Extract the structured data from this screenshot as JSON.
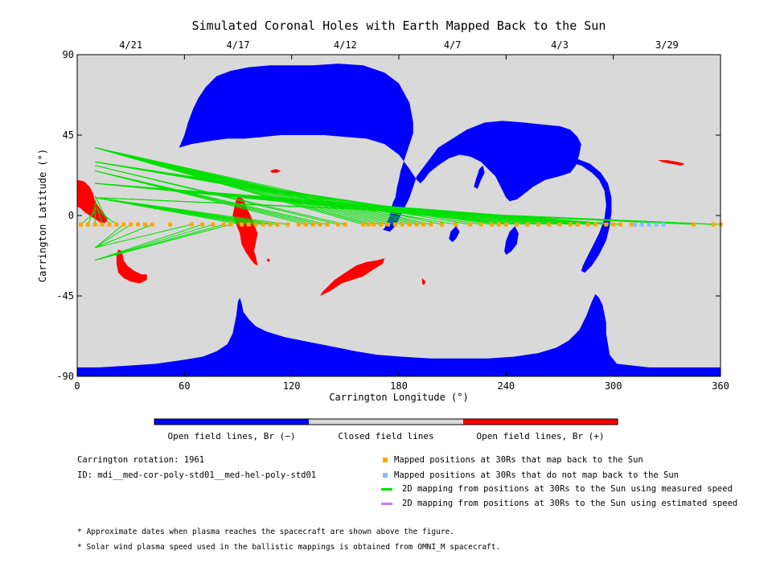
{
  "chart_data": {
    "type": "map",
    "title": "Simulated Coronal Holes with Earth Mapped Back to the Sun",
    "xlabel": "Carrington Longitude (°)",
    "ylabel": "Carrington Latitude (°)",
    "xlim": [
      0,
      360
    ],
    "ylim": [
      -90,
      90
    ],
    "x_ticks": [
      "0",
      "60",
      "120",
      "180",
      "240",
      "300",
      "360"
    ],
    "y_ticks": [
      "90",
      "45",
      "0",
      "-45",
      "-90"
    ],
    "top_dates": [
      {
        "label": "4/21",
        "lon": 30
      },
      {
        "label": "4/17",
        "lon": 90
      },
      {
        "label": "4/12",
        "lon": 150
      },
      {
        "label": "4/7",
        "lon": 210
      },
      {
        "label": "4/3",
        "lon": 270
      },
      {
        "label": "3/29",
        "lon": 330
      }
    ],
    "colorbar": [
      {
        "label": "Open field lines, Br (−)",
        "color": "#0000ff"
      },
      {
        "label": "Closed field lines",
        "color": "#d9d9d9"
      },
      {
        "label": "Open field lines, Br (+)",
        "color": "#ff0000"
      }
    ],
    "footpoint_latitude": -5,
    "mapped_positions_lon": [
      2,
      6,
      10,
      14,
      18,
      22,
      26,
      30,
      34,
      38,
      42,
      52,
      64,
      70,
      76,
      82,
      86,
      92,
      96,
      100,
      104,
      108,
      112,
      118,
      124,
      128,
      132,
      136,
      140,
      146,
      150,
      160,
      163,
      166,
      170,
      174,
      178,
      182,
      186,
      190,
      194,
      198,
      204,
      212,
      220,
      226,
      232,
      236,
      240,
      246,
      252,
      258,
      264,
      270,
      276,
      280,
      286,
      290,
      296,
      300,
      304,
      310,
      345,
      356,
      360
    ],
    "unmapped_positions_lon": [
      312,
      316,
      320,
      324,
      328
    ],
    "measured_mappings": [
      [
        2,
        10,
        2
      ],
      [
        6,
        10,
        5
      ],
      [
        10,
        10,
        7
      ],
      [
        14,
        10,
        9
      ],
      [
        18,
        10,
        11
      ],
      [
        22,
        10,
        4
      ],
      [
        26,
        10,
        -18
      ],
      [
        30,
        10,
        -18
      ],
      [
        42,
        10,
        -18
      ],
      [
        64,
        10,
        -18
      ],
      [
        70,
        10,
        -25
      ],
      [
        76,
        10,
        -25
      ],
      [
        82,
        10,
        -25
      ],
      [
        86,
        10,
        -25
      ],
      [
        92,
        10,
        10
      ],
      [
        96,
        10,
        10
      ],
      [
        100,
        10,
        10
      ],
      [
        104,
        10,
        10
      ],
      [
        108,
        10,
        10
      ],
      [
        112,
        10,
        10
      ],
      [
        118,
        10,
        10
      ],
      [
        128,
        10,
        25
      ],
      [
        132,
        10,
        25
      ],
      [
        136,
        10,
        25
      ],
      [
        140,
        10,
        25
      ],
      [
        146,
        10,
        28
      ],
      [
        150,
        10,
        28
      ],
      [
        160,
        10,
        38
      ],
      [
        163,
        10,
        38
      ],
      [
        166,
        10,
        38
      ],
      [
        170,
        10,
        38
      ],
      [
        174,
        10,
        38
      ],
      [
        178,
        10,
        38
      ],
      [
        182,
        10,
        38
      ],
      [
        186,
        10,
        38
      ],
      [
        190,
        10,
        38
      ],
      [
        194,
        10,
        38
      ],
      [
        198,
        10,
        38
      ],
      [
        204,
        10,
        38
      ],
      [
        212,
        10,
        30
      ],
      [
        220,
        10,
        30
      ],
      [
        226,
        10,
        30
      ],
      [
        232,
        10,
        30
      ],
      [
        236,
        10,
        30
      ],
      [
        240,
        10,
        30
      ],
      [
        246,
        10,
        18
      ],
      [
        252,
        10,
        18
      ],
      [
        258,
        10,
        18
      ],
      [
        264,
        10,
        18
      ],
      [
        270,
        10,
        18
      ],
      [
        276,
        10,
        18
      ],
      [
        280,
        10,
        18
      ],
      [
        286,
        10,
        18
      ],
      [
        290,
        10,
        18
      ],
      [
        296,
        10,
        18
      ],
      [
        300,
        10,
        18
      ],
      [
        304,
        10,
        18
      ],
      [
        345,
        10,
        10
      ],
      [
        356,
        10,
        10
      ],
      [
        360,
        10,
        10
      ]
    ],
    "holes_negative": [
      [
        [
          57,
          38
        ],
        [
          60,
          45
        ],
        [
          62,
          52
        ],
        [
          65,
          60
        ],
        [
          68,
          66
        ],
        [
          72,
          72
        ],
        [
          78,
          78
        ],
        [
          86,
          81
        ],
        [
          96,
          83
        ],
        [
          108,
          84
        ],
        [
          120,
          84
        ],
        [
          132,
          84
        ],
        [
          146,
          85
        ],
        [
          160,
          84
        ],
        [
          172,
          80
        ],
        [
          180,
          74
        ],
        [
          186,
          63
        ],
        [
          188,
          52
        ],
        [
          188,
          46
        ],
        [
          186,
          40
        ],
        [
          184,
          34
        ],
        [
          182,
          28
        ],
        [
          181,
          25
        ],
        [
          180,
          20
        ],
        [
          179,
          16
        ],
        [
          178,
          10
        ],
        [
          177,
          8
        ],
        [
          176,
          5
        ],
        [
          175,
          0
        ],
        [
          172,
          -7
        ],
        [
          171,
          -8
        ],
        [
          175,
          -9
        ],
        [
          178,
          -6
        ],
        [
          182,
          2
        ],
        [
          186,
          10
        ],
        [
          190,
          22
        ],
        [
          196,
          30
        ],
        [
          202,
          38
        ],
        [
          210,
          43
        ],
        [
          218,
          48
        ],
        [
          228,
          52
        ],
        [
          238,
          53
        ],
        [
          250,
          52
        ],
        [
          260,
          51
        ],
        [
          270,
          50
        ],
        [
          276,
          48
        ],
        [
          280,
          44
        ],
        [
          282,
          40
        ],
        [
          281,
          34
        ],
        [
          279,
          28
        ],
        [
          276,
          24
        ],
        [
          270,
          22
        ],
        [
          262,
          20
        ],
        [
          255,
          16
        ],
        [
          250,
          12
        ],
        [
          246,
          9
        ],
        [
          242,
          8
        ],
        [
          240,
          10
        ],
        [
          238,
          14
        ],
        [
          236,
          18
        ],
        [
          234,
          22
        ],
        [
          230,
          26
        ],
        [
          226,
          30
        ],
        [
          220,
          33
        ],
        [
          214,
          34
        ],
        [
          208,
          32
        ],
        [
          202,
          28
        ],
        [
          197,
          24
        ],
        [
          194,
          20
        ],
        [
          192,
          18
        ],
        [
          190,
          20
        ],
        [
          186,
          26
        ],
        [
          180,
          34
        ],
        [
          172,
          40
        ],
        [
          162,
          43
        ],
        [
          150,
          44
        ],
        [
          138,
          45
        ],
        [
          126,
          45
        ],
        [
          114,
          45
        ],
        [
          104,
          44
        ],
        [
          94,
          43
        ],
        [
          84,
          43
        ],
        [
          76,
          42
        ],
        [
          70,
          41
        ],
        [
          64,
          40
        ]
      ],
      [
        [
          247,
          20
        ],
        [
          252,
          24
        ],
        [
          258,
          27
        ],
        [
          266,
          30
        ],
        [
          274,
          30
        ],
        [
          282,
          28
        ],
        [
          288,
          24
        ],
        [
          292,
          20
        ],
        [
          295,
          14
        ],
        [
          296,
          6
        ],
        [
          295,
          -2
        ],
        [
          292,
          -10
        ],
        [
          288,
          -18
        ],
        [
          285,
          -24
        ],
        [
          283,
          -28
        ],
        [
          282,
          -31
        ],
        [
          284,
          -32
        ],
        [
          288,
          -28
        ],
        [
          292,
          -22
        ],
        [
          296,
          -14
        ],
        [
          298,
          -6
        ],
        [
          299,
          2
        ],
        [
          299,
          10
        ],
        [
          297,
          18
        ],
        [
          293,
          24
        ],
        [
          287,
          29
        ],
        [
          279,
          32
        ],
        [
          270,
          33
        ],
        [
          262,
          32
        ],
        [
          255,
          29
        ],
        [
          250,
          25
        ]
      ],
      [
        [
          0,
          -85
        ],
        [
          0,
          -90
        ],
        [
          360,
          -90
        ],
        [
          360,
          -85
        ],
        [
          320,
          -85
        ],
        [
          302,
          -83
        ],
        [
          298,
          -78
        ],
        [
          297,
          -72
        ],
        [
          296,
          -66
        ],
        [
          296,
          -60
        ],
        [
          295,
          -55
        ],
        [
          294,
          -50
        ],
        [
          292,
          -46
        ],
        [
          290,
          -44
        ],
        [
          288,
          -48
        ],
        [
          285,
          -56
        ],
        [
          281,
          -64
        ],
        [
          275,
          -70
        ],
        [
          268,
          -74
        ],
        [
          258,
          -77
        ],
        [
          244,
          -79
        ],
        [
          230,
          -80
        ],
        [
          214,
          -80
        ],
        [
          198,
          -80
        ],
        [
          182,
          -79
        ],
        [
          168,
          -78
        ],
        [
          156,
          -76
        ],
        [
          146,
          -74
        ],
        [
          136,
          -72
        ],
        [
          126,
          -70
        ],
        [
          116,
          -68
        ],
        [
          106,
          -65
        ],
        [
          100,
          -62
        ],
        [
          96,
          -58
        ],
        [
          93,
          -54
        ],
        [
          92,
          -49
        ],
        [
          91,
          -46
        ],
        [
          90,
          -48
        ],
        [
          89,
          -56
        ],
        [
          87,
          -66
        ],
        [
          84,
          -72
        ],
        [
          78,
          -76
        ],
        [
          70,
          -79
        ],
        [
          58,
          -81
        ],
        [
          44,
          -83
        ],
        [
          28,
          -84
        ],
        [
          12,
          -85
        ]
      ],
      [
        [
          245,
          -6
        ],
        [
          247,
          -10
        ],
        [
          246,
          -16
        ],
        [
          243,
          -20
        ],
        [
          240,
          -22
        ],
        [
          239,
          -20
        ],
        [
          240,
          -14
        ],
        [
          242,
          -9
        ]
      ],
      [
        [
          212,
          -6
        ],
        [
          214,
          -9
        ],
        [
          212,
          -13
        ],
        [
          210,
          -15
        ],
        [
          208,
          -13
        ],
        [
          209,
          -9
        ]
      ],
      [
        [
          224,
          15
        ],
        [
          226,
          20
        ],
        [
          228,
          24
        ],
        [
          227,
          28
        ],
        [
          225,
          26
        ],
        [
          223,
          20
        ],
        [
          222,
          16
        ]
      ]
    ],
    "holes_positive": [
      [
        [
          0,
          20
        ],
        [
          4,
          19
        ],
        [
          7,
          16
        ],
        [
          9,
          12
        ],
        [
          10,
          8
        ],
        [
          12,
          5
        ],
        [
          14,
          2
        ],
        [
          16,
          0
        ],
        [
          17,
          -2
        ],
        [
          16,
          -4
        ],
        [
          13,
          -4
        ],
        [
          10,
          -2
        ],
        [
          7,
          0
        ],
        [
          4,
          2
        ],
        [
          2,
          4
        ],
        [
          0,
          5
        ]
      ],
      [
        [
          23,
          -19
        ],
        [
          25,
          -20
        ],
        [
          26,
          -25
        ],
        [
          28,
          -28
        ],
        [
          32,
          -31
        ],
        [
          36,
          -33
        ],
        [
          39,
          -33
        ],
        [
          39,
          -36
        ],
        [
          35,
          -38
        ],
        [
          30,
          -37
        ],
        [
          26,
          -35
        ],
        [
          23,
          -32
        ],
        [
          22,
          -27
        ],
        [
          22,
          -22
        ]
      ],
      [
        [
          90,
          11
        ],
        [
          93,
          9
        ],
        [
          95,
          4
        ],
        [
          97,
          0
        ],
        [
          99,
          -5
        ],
        [
          101,
          -10
        ],
        [
          100,
          -15
        ],
        [
          99,
          -20
        ],
        [
          100,
          -23
        ],
        [
          101,
          -28
        ],
        [
          99,
          -27
        ],
        [
          96,
          -23
        ],
        [
          94,
          -20
        ],
        [
          92,
          -16
        ],
        [
          91,
          -10
        ],
        [
          89,
          -5
        ],
        [
          87,
          0
        ],
        [
          88,
          5
        ],
        [
          89,
          9
        ]
      ],
      [
        [
          136,
          -45
        ],
        [
          142,
          -42
        ],
        [
          148,
          -38
        ],
        [
          154,
          -36
        ],
        [
          160,
          -34
        ],
        [
          166,
          -30
        ],
        [
          171,
          -27
        ],
        [
          172,
          -24
        ],
        [
          168,
          -25
        ],
        [
          162,
          -26
        ],
        [
          156,
          -28
        ],
        [
          150,
          -32
        ],
        [
          144,
          -36
        ],
        [
          140,
          -40
        ],
        [
          137,
          -43
        ]
      ],
      [
        [
          325,
          31
        ],
        [
          330,
          31
        ],
        [
          336,
          30
        ],
        [
          340,
          29
        ],
        [
          338,
          28
        ],
        [
          332,
          29
        ],
        [
          327,
          30
        ]
      ],
      [
        [
          108,
          25
        ],
        [
          111,
          26
        ],
        [
          114,
          25
        ],
        [
          112,
          24
        ],
        [
          109,
          24
        ]
      ],
      [
        [
          193,
          -35
        ],
        [
          195,
          -37
        ],
        [
          194,
          -39
        ],
        [
          193,
          -38
        ]
      ],
      [
        [
          107,
          -24
        ],
        [
          108,
          -25
        ],
        [
          107,
          -26
        ],
        [
          106,
          -25
        ]
      ]
    ]
  },
  "info": {
    "carrington_rotation": "Carrington rotation: 1961",
    "id": "ID: mdi__med-cor-poly-std01__med-hel-poly-std01"
  },
  "legend": [
    {
      "label": "Mapped positions at 30Rs that map back to the Sun",
      "color": "#ffa500",
      "kind": "square"
    },
    {
      "label": "Mapped positions at 30Rs that do not map back to the Sun",
      "color": "#80c0ff",
      "kind": "square"
    },
    {
      "label": "2D mapping from positions at 30Rs to the Sun using measured speed",
      "color": "#00e000",
      "kind": "line"
    },
    {
      "label": "2D mapping from positions at 30Rs to the Sun using estimated speed",
      "color": "#c080ff",
      "kind": "line"
    }
  ],
  "notes": [
    "* Approximate dates when plasma reaches the spacecraft are shown above the figure.",
    "* Solar wind plasma speed used in the ballistic mappings is obtained from OMNI_M spacecraft."
  ]
}
